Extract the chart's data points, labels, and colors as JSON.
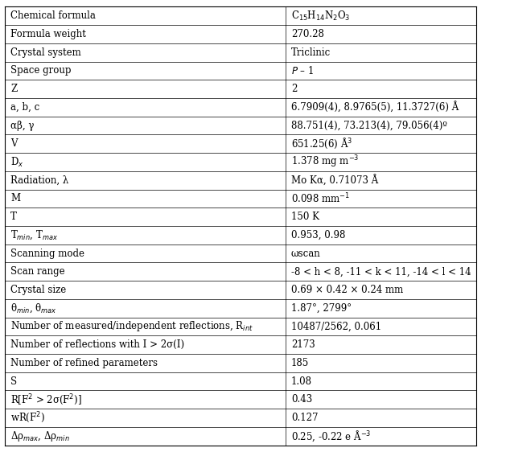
{
  "rows": [
    [
      "Chemical formula",
      "C$_{15}$H$_{14}$N$_{2}$O$_{3}$"
    ],
    [
      "Formula weight",
      "270.28"
    ],
    [
      "Crystal system",
      "Triclinic"
    ],
    [
      "Space group",
      "$P$ – 1"
    ],
    [
      "Z",
      "2"
    ],
    [
      "a, b, c",
      "6.7909(4), 8.9765(5), 11.3727(6) Å"
    ],
    [
      "αβ, γ",
      "88.751(4), 73.213(4), 79.056(4)º"
    ],
    [
      "V",
      "651.25(6) Å$^{3}$"
    ],
    [
      "D$_{x}$",
      "1.378 mg m$^{-3}$"
    ],
    [
      "Radiation, λ",
      "Mo Kα, 0.71073 Å"
    ],
    [
      "M",
      "0.098 mm$^{-1}$"
    ],
    [
      "T",
      "150 K"
    ],
    [
      "T$_{min}$, T$_{max}$",
      "0.953, 0.98"
    ],
    [
      "Scanning mode",
      "ωscan"
    ],
    [
      "Scan range",
      "-8 < h < 8, -11 < k < 11, -14 < l < 14"
    ],
    [
      "Crystal size",
      "0.69 × 0.42 × 0.24 mm"
    ],
    [
      "θ$_{min}$, θ$_{max}$",
      "1.87°, 2799°"
    ],
    [
      "Number of measured/independent reflections, R$_{int}$",
      "10487/2562, 0.061"
    ],
    [
      "Number of reflections with I > 2σ(I)",
      "2173"
    ],
    [
      "Number of refined parameters",
      "185"
    ],
    [
      "S",
      "1.08"
    ],
    [
      "R[F$^{2}$ > 2σ(F$^{2}$)]",
      "0.43"
    ],
    [
      "wR(F$^{2}$)",
      "0.127"
    ],
    [
      "Δρ$_{max}$, Δρ$_{min}$",
      "0.25, -0.22 e Å$^{-3}$"
    ]
  ],
  "col_split": 0.595,
  "figsize": [
    6.29,
    5.62
  ],
  "dpi": 100,
  "font_size": 8.5,
  "bg_color": "#ffffff",
  "border_color": "#000000",
  "line_color": "#000000"
}
